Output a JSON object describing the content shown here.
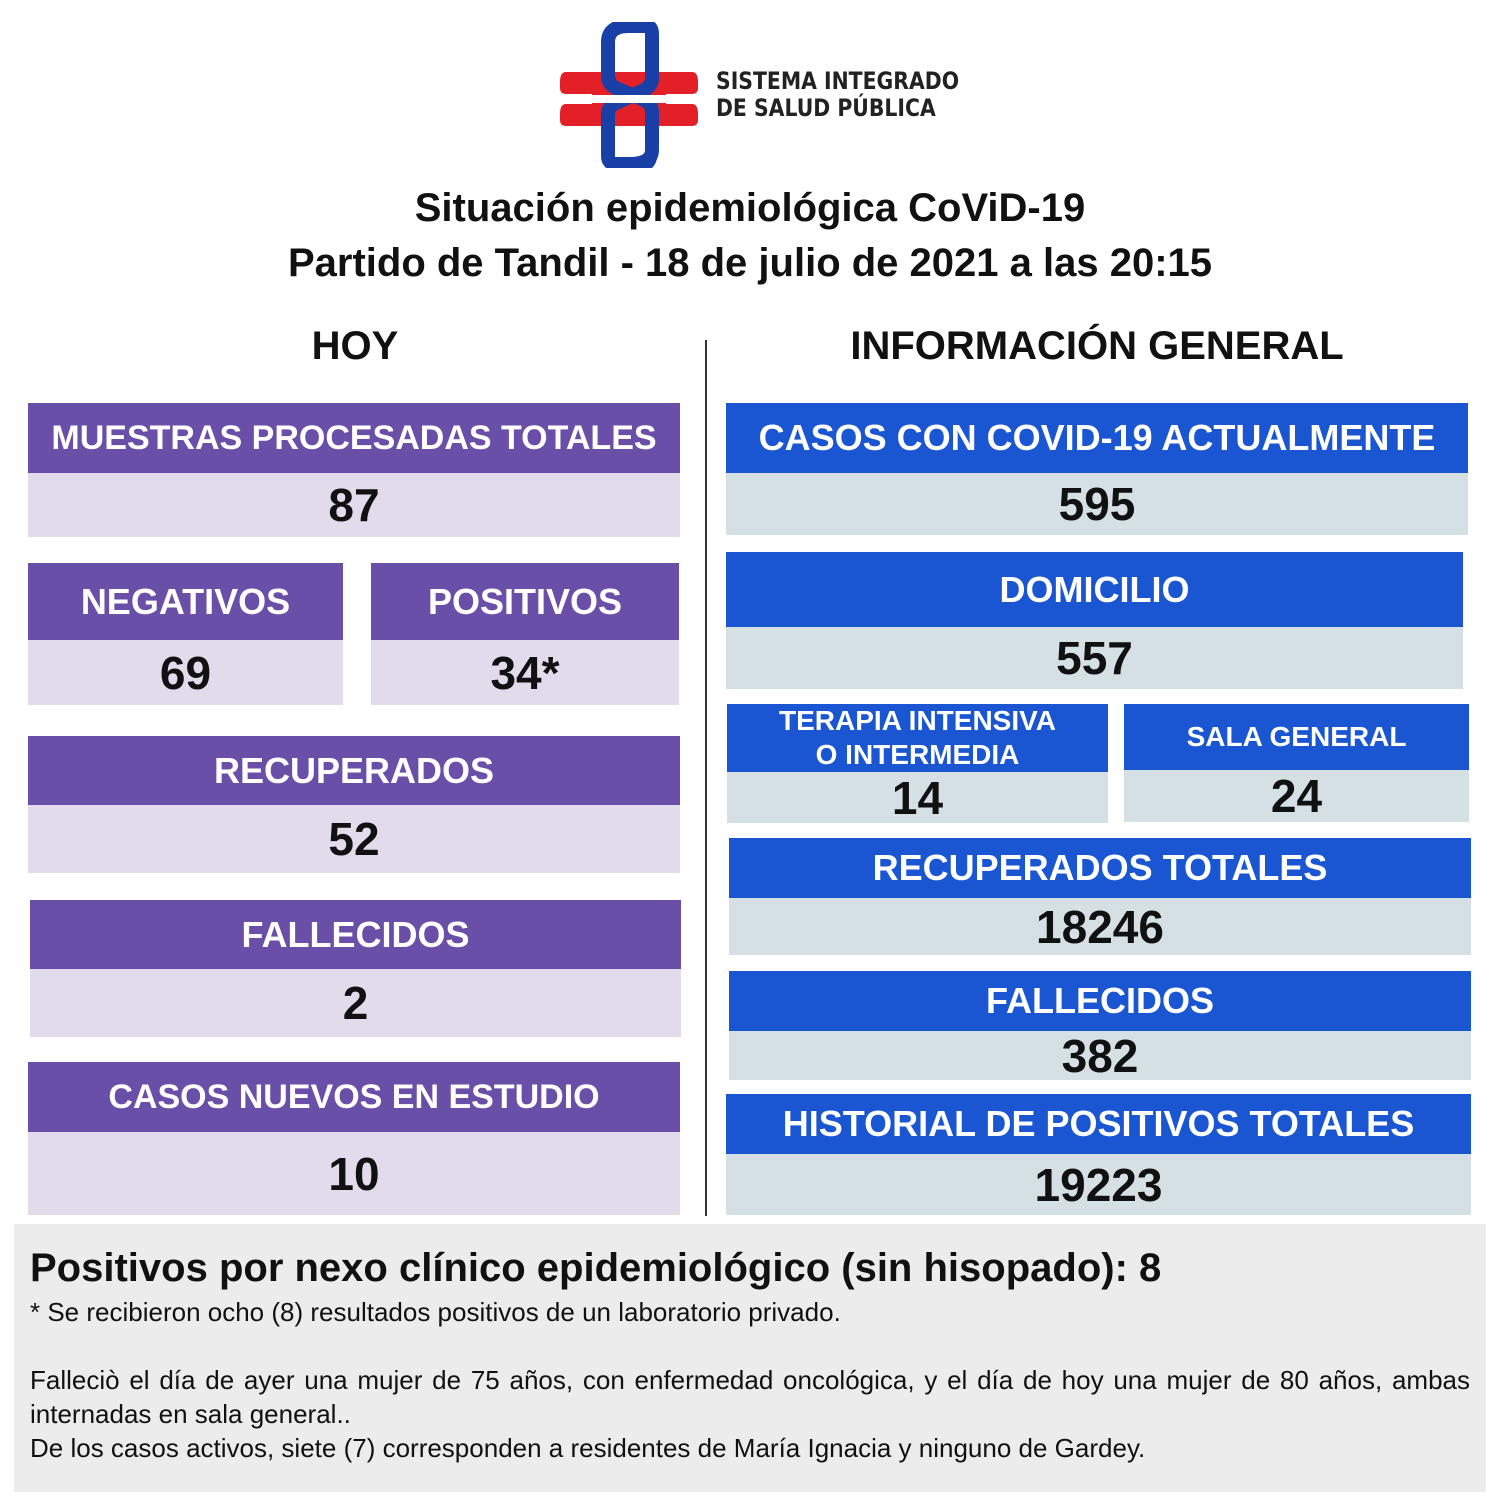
{
  "header": {
    "logo_lines": [
      "SISTEMA INTEGRADO",
      "DE SALUD PÚBLICA"
    ],
    "title_lines": [
      "Situación epidemiológica CoViD-19",
      "Partido de Tandil - 18 de julio de 2021 a las 20:15"
    ]
  },
  "today": {
    "heading": "HOY",
    "boxes": [
      {
        "label": [
          "MUESTRAS PROCESADAS TOTALES"
        ],
        "value": 87
      },
      {
        "label": [
          "NEGATIVOS"
        ],
        "value": 69
      },
      {
        "label": [
          "POSITIVOS"
        ],
        "value": "34*"
      },
      {
        "label": [
          "RECUPERADOS"
        ],
        "value": 52
      },
      {
        "label": [
          "FALLECIDOS"
        ],
        "value": 2
      },
      {
        "label": [
          "CASOS NUEVOS EN ESTUDIO"
        ],
        "value": 10
      }
    ]
  },
  "general": {
    "heading": "INFORMACIÓN GENERAL",
    "boxes": [
      {
        "label": [
          "CASOS CON COVID-19 ACTUALMENTE"
        ],
        "value": 595
      },
      {
        "label": [
          "DOMICILIO"
        ],
        "value": 557
      },
      {
        "label": [
          "TERAPIA INTENSIVA",
          "O INTERMEDIA"
        ],
        "value": 14
      },
      {
        "label": [
          "SALA GENERAL"
        ],
        "value": 24
      },
      {
        "label": [
          "RECUPERADOS TOTALES"
        ],
        "value": 18246
      },
      {
        "label": [
          "FALLECIDOS"
        ],
        "value": 382
      },
      {
        "label": [
          "HISTORIAL DE POSITIVOS TOTALES"
        ],
        "value": 19223
      }
    ]
  },
  "footer": {
    "lead": "Positivos por nexo clínico epidemiológico (sin hisopado): 8",
    "notes": [
      "* Se recibieron ocho (8) resultados positivos de un laboratorio privado.",
      "Falleciò el día de ayer una mujer de 75 años, con enfermedad oncológica, y el día de hoy una mujer de 80 años, ambas internadas en sala general..",
      "De los casos activos, siete (7) corresponden a residentes de María Ignacia y ninguno de Gardey."
    ]
  }
}
